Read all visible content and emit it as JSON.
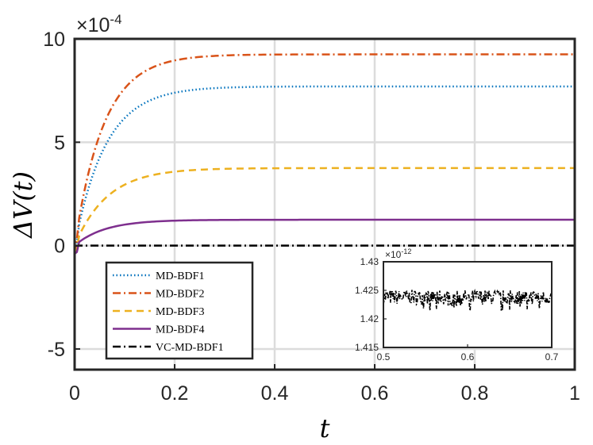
{
  "chart_data": [
    {
      "type": "line",
      "title": "",
      "xlabel": "t",
      "ylabel": "ΔV(t)",
      "xlim": [
        0,
        1
      ],
      "ylim": [
        -6,
        10
      ],
      "y_scale_label": "×10^-4",
      "y_scale_prefix": "×10",
      "y_scale_exp": "-4",
      "grid": true,
      "legend_position": "bottom-left",
      "xticks": [
        0,
        0.2,
        0.4,
        0.6,
        0.8,
        1
      ],
      "xtick_labels": [
        "0",
        "0.2",
        "0.4",
        "0.6",
        "0.8",
        "1"
      ],
      "yticks": [
        -5,
        0,
        5,
        10
      ],
      "ytick_labels": [
        "-5",
        "0",
        "5",
        "10"
      ],
      "series": [
        {
          "name": "MD-BDF1",
          "color": "#0072BD",
          "style": "dotted",
          "final": 7.7,
          "tau": 0.062
        },
        {
          "name": "MD-BDF2",
          "color": "#D95319",
          "style": "dashdot",
          "final": 9.25,
          "tau": 0.058
        },
        {
          "name": "MD-BDF3",
          "color": "#EDB120",
          "style": "dashed",
          "final": 3.75,
          "tau": 0.065
        },
        {
          "name": "MD-BDF4",
          "color": "#7E2F8E",
          "style": "solid",
          "final": 1.25,
          "tau": 0.06
        },
        {
          "name": "VC-MD-BDF1",
          "color": "#000000",
          "style": "dashdot",
          "final": 0,
          "tau": 0.05
        }
      ]
    },
    {
      "type": "line",
      "title": "",
      "xlim": [
        0.5,
        0.7
      ],
      "ylim": [
        1.415,
        1.43
      ],
      "y_scale_label": "×10^-12",
      "y_scale_prefix": "×10",
      "y_scale_exp": "-12",
      "xticks": [
        0.5,
        0.6,
        0.7
      ],
      "xtick_labels": [
        "0.5",
        "0.6",
        "0.7"
      ],
      "yticks": [
        1.415,
        1.42,
        1.425,
        1.43
      ],
      "ytick_labels": [
        "1.415",
        "1.42",
        "1.425",
        "1.43"
      ],
      "series": [
        {
          "name": "VC-MD-BDF1",
          "color": "#000000",
          "style": "dashdot",
          "mean": 1.4238,
          "amplitude": 0.0016
        }
      ]
    }
  ]
}
